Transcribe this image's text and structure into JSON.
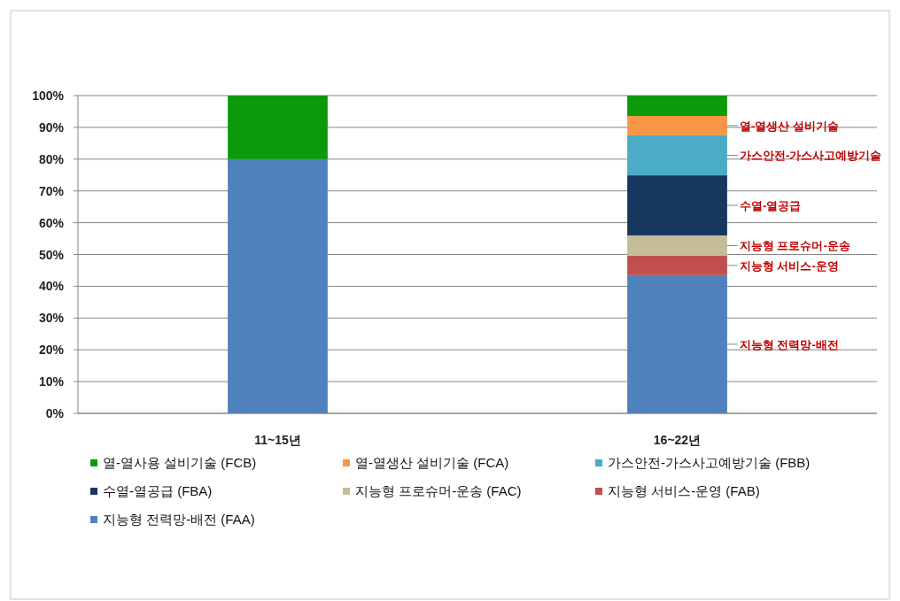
{
  "chart_data": {
    "type": "bar",
    "stacked": true,
    "categories": [
      "11~15년",
      "16~22년"
    ],
    "series": [
      {
        "name": "지능형 전력망-배전 (FAA)",
        "color": "#4f81bd",
        "values": [
          80,
          43.5
        ]
      },
      {
        "name": "지능형 서비스-운영 (FAB)",
        "color": "#c0504d",
        "values": [
          null,
          6.1
        ]
      },
      {
        "name": "지능형 프로슈머-운송 (FAC)",
        "color": "#c4bd97",
        "values": [
          null,
          6.4
        ]
      },
      {
        "name": "수열-열공급 (FBA)",
        "color": "#17375e",
        "values": [
          null,
          18.9
        ]
      },
      {
        "name": "가스안전-가스사고예방기술 (FBB)",
        "color": "#4bacc6",
        "values": [
          null,
          12.6
        ]
      },
      {
        "name": "열-열생산 설비기술 (FCA)",
        "color": "#f79646",
        "values": [
          null,
          6.1
        ]
      },
      {
        "name": "열-열사용 설비기술 (FCB)",
        "color": "#0a9a0a",
        "values": [
          20,
          6.4
        ]
      }
    ],
    "ylim": [
      0,
      100
    ],
    "yticks": [
      {
        "value": 0,
        "label": "0%"
      },
      {
        "value": 10,
        "label": "10%"
      },
      {
        "value": 20,
        "label": "20%"
      },
      {
        "value": 30,
        "label": "30%"
      },
      {
        "value": 40,
        "label": "40%"
      },
      {
        "value": 50,
        "label": "50%"
      },
      {
        "value": 60,
        "label": "60%"
      },
      {
        "value": 70,
        "label": "70%"
      },
      {
        "value": 80,
        "label": "80%"
      },
      {
        "value": 90,
        "label": "90%"
      },
      {
        "value": 100,
        "label": "100%"
      }
    ],
    "grid": "y",
    "legend": "bottom",
    "annotations": [
      "열-열생산 설비기술",
      "가스안전-가스사고예방기술",
      "수열-열공급",
      "지능형 프로슈머-운송",
      "지능형 서비스-운영",
      "지능형 전력망-배전"
    ]
  }
}
